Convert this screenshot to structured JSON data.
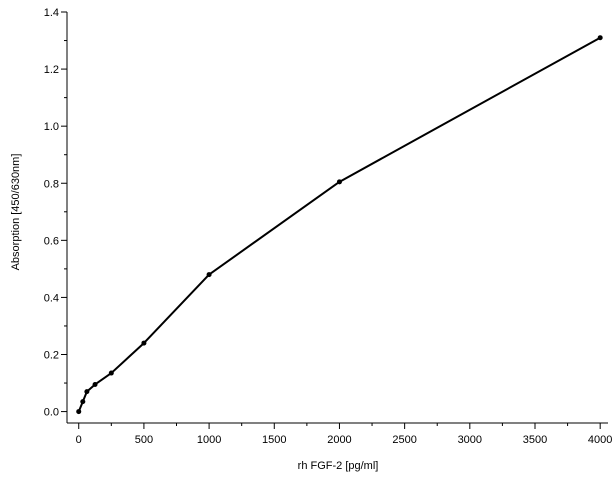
{
  "chart_data": {
    "type": "line",
    "title": "",
    "xlabel": "rh FGF-2 [pg/ml]",
    "ylabel": "Absorption [450/630nm]",
    "xlim": [
      -90,
      4060
    ],
    "ylim": [
      -0.04,
      1.4
    ],
    "x_ticks": [
      0,
      500,
      1000,
      1500,
      2000,
      2500,
      3000,
      3500,
      4000
    ],
    "y_ticks": [
      0.0,
      0.2,
      0.4,
      0.6,
      0.8,
      1.0,
      1.2,
      1.4
    ],
    "x_tick_labels": [
      "0",
      "500",
      "1000",
      "1500",
      "2000",
      "2500",
      "3000",
      "3500",
      "4000"
    ],
    "y_tick_labels": [
      "0.0",
      "0.2",
      "0.4",
      "0.6",
      "0.8",
      "1.0",
      "1.2",
      "1.4"
    ],
    "grid": false,
    "legend": "none",
    "series": [
      {
        "x": [
          0,
          31.25,
          62.5,
          125,
          250,
          500,
          1000,
          2000,
          4000
        ],
        "y": [
          0.0,
          0.035,
          0.07,
          0.095,
          0.135,
          0.24,
          0.48,
          0.805,
          1.31
        ]
      }
    ],
    "colors": {
      "line": "#000000",
      "marker": "#000000",
      "axis": "#000000"
    }
  }
}
